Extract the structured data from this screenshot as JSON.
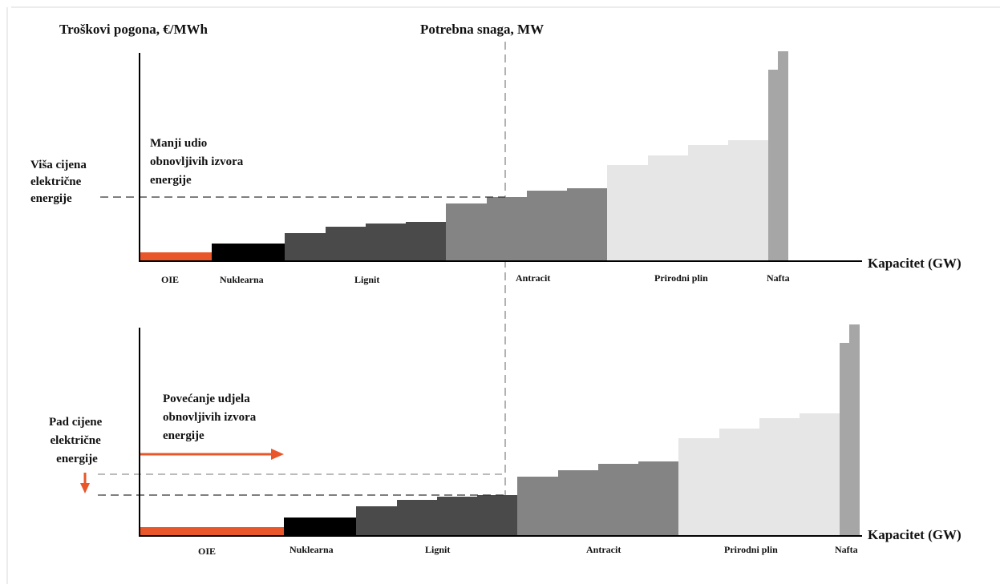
{
  "texts": {
    "ylabel": "Troškovi pogona, €/MWh",
    "demand_label": "Potrebna snaga, MW",
    "xlabel": "Kapacitet (GW)",
    "top_note": [
      "Manji udio",
      "obnovljivih izvora",
      "energije"
    ],
    "top_price": [
      "Viša cijena",
      "električne",
      "energije"
    ],
    "bottom_note": [
      "Povećanje udjela",
      "obnovljivih izvora",
      "energije"
    ],
    "bottom_price": [
      "Pad cijene",
      "električne",
      "energije"
    ]
  },
  "colors": {
    "oie": "#e8562a",
    "nuklearna": "#000000",
    "lignit": "#4a4a4a",
    "antracit": "#848484",
    "plin": "#e6e6e6",
    "nafta": "#a6a6a6",
    "arrow": "#e8562a",
    "dash": "#333333"
  },
  "top": {
    "sources": [
      "OIE",
      "Nuklearna",
      "Lignit",
      "Antracit",
      "Prirodni plin",
      "Nafta"
    ]
  },
  "bottom": {
    "sources": [
      "OIE",
      "Nuklearna",
      "Lignit",
      "Antracit",
      "Prirodni plin",
      "Nafta"
    ]
  }
}
